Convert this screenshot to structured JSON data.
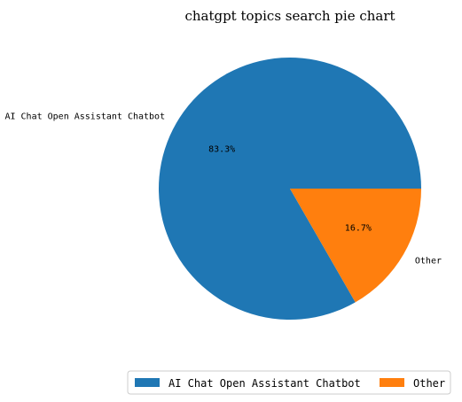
{
  "chart_data": {
    "type": "pie",
    "title": "chatgpt topics search pie chart",
    "slices": [
      {
        "label": "AI Chat Open Assistant Chatbot",
        "value": 83.3,
        "pct_label": "83.3%",
        "color": "#1f77b4"
      },
      {
        "label": "Other",
        "value": 16.7,
        "pct_label": "16.7%",
        "color": "#ff7f0e"
      }
    ],
    "legend_position": "bottom-right"
  }
}
